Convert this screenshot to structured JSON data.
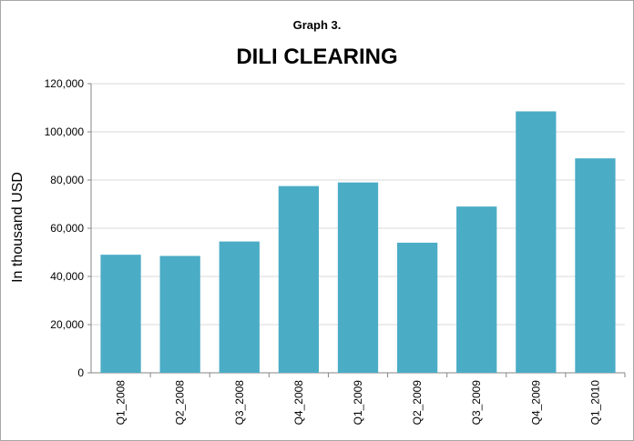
{
  "chart_data": {
    "type": "bar",
    "title": "Graph 3.",
    "subtitle": "DILI CLEARING",
    "y_label": "In thousand USD",
    "categories": [
      "Q1_2008",
      "Q2_2008",
      "Q3_2008",
      "Q4_2008",
      "Q1_2009",
      "Q2_2009",
      "Q3_2009",
      "Q4_2009",
      "Q1_2010"
    ],
    "values": [
      49000,
      48500,
      54500,
      77500,
      79000,
      54000,
      69000,
      108500,
      89000
    ],
    "color": "#4bacc6",
    "ylim": [
      0,
      120000
    ],
    "yticks": [
      0,
      {
        "value": 20000,
        "label": "20,000"
      },
      {
        "value": 40000,
        "label": "40,000"
      },
      {
        "value": 60000,
        "label": "60,000"
      },
      {
        "value": 80000,
        "label": "80,000"
      },
      {
        "value": 100000,
        "label": "100,000"
      },
      {
        "value": 120000,
        "label": "120,000"
      }
    ],
    "grid": true
  }
}
